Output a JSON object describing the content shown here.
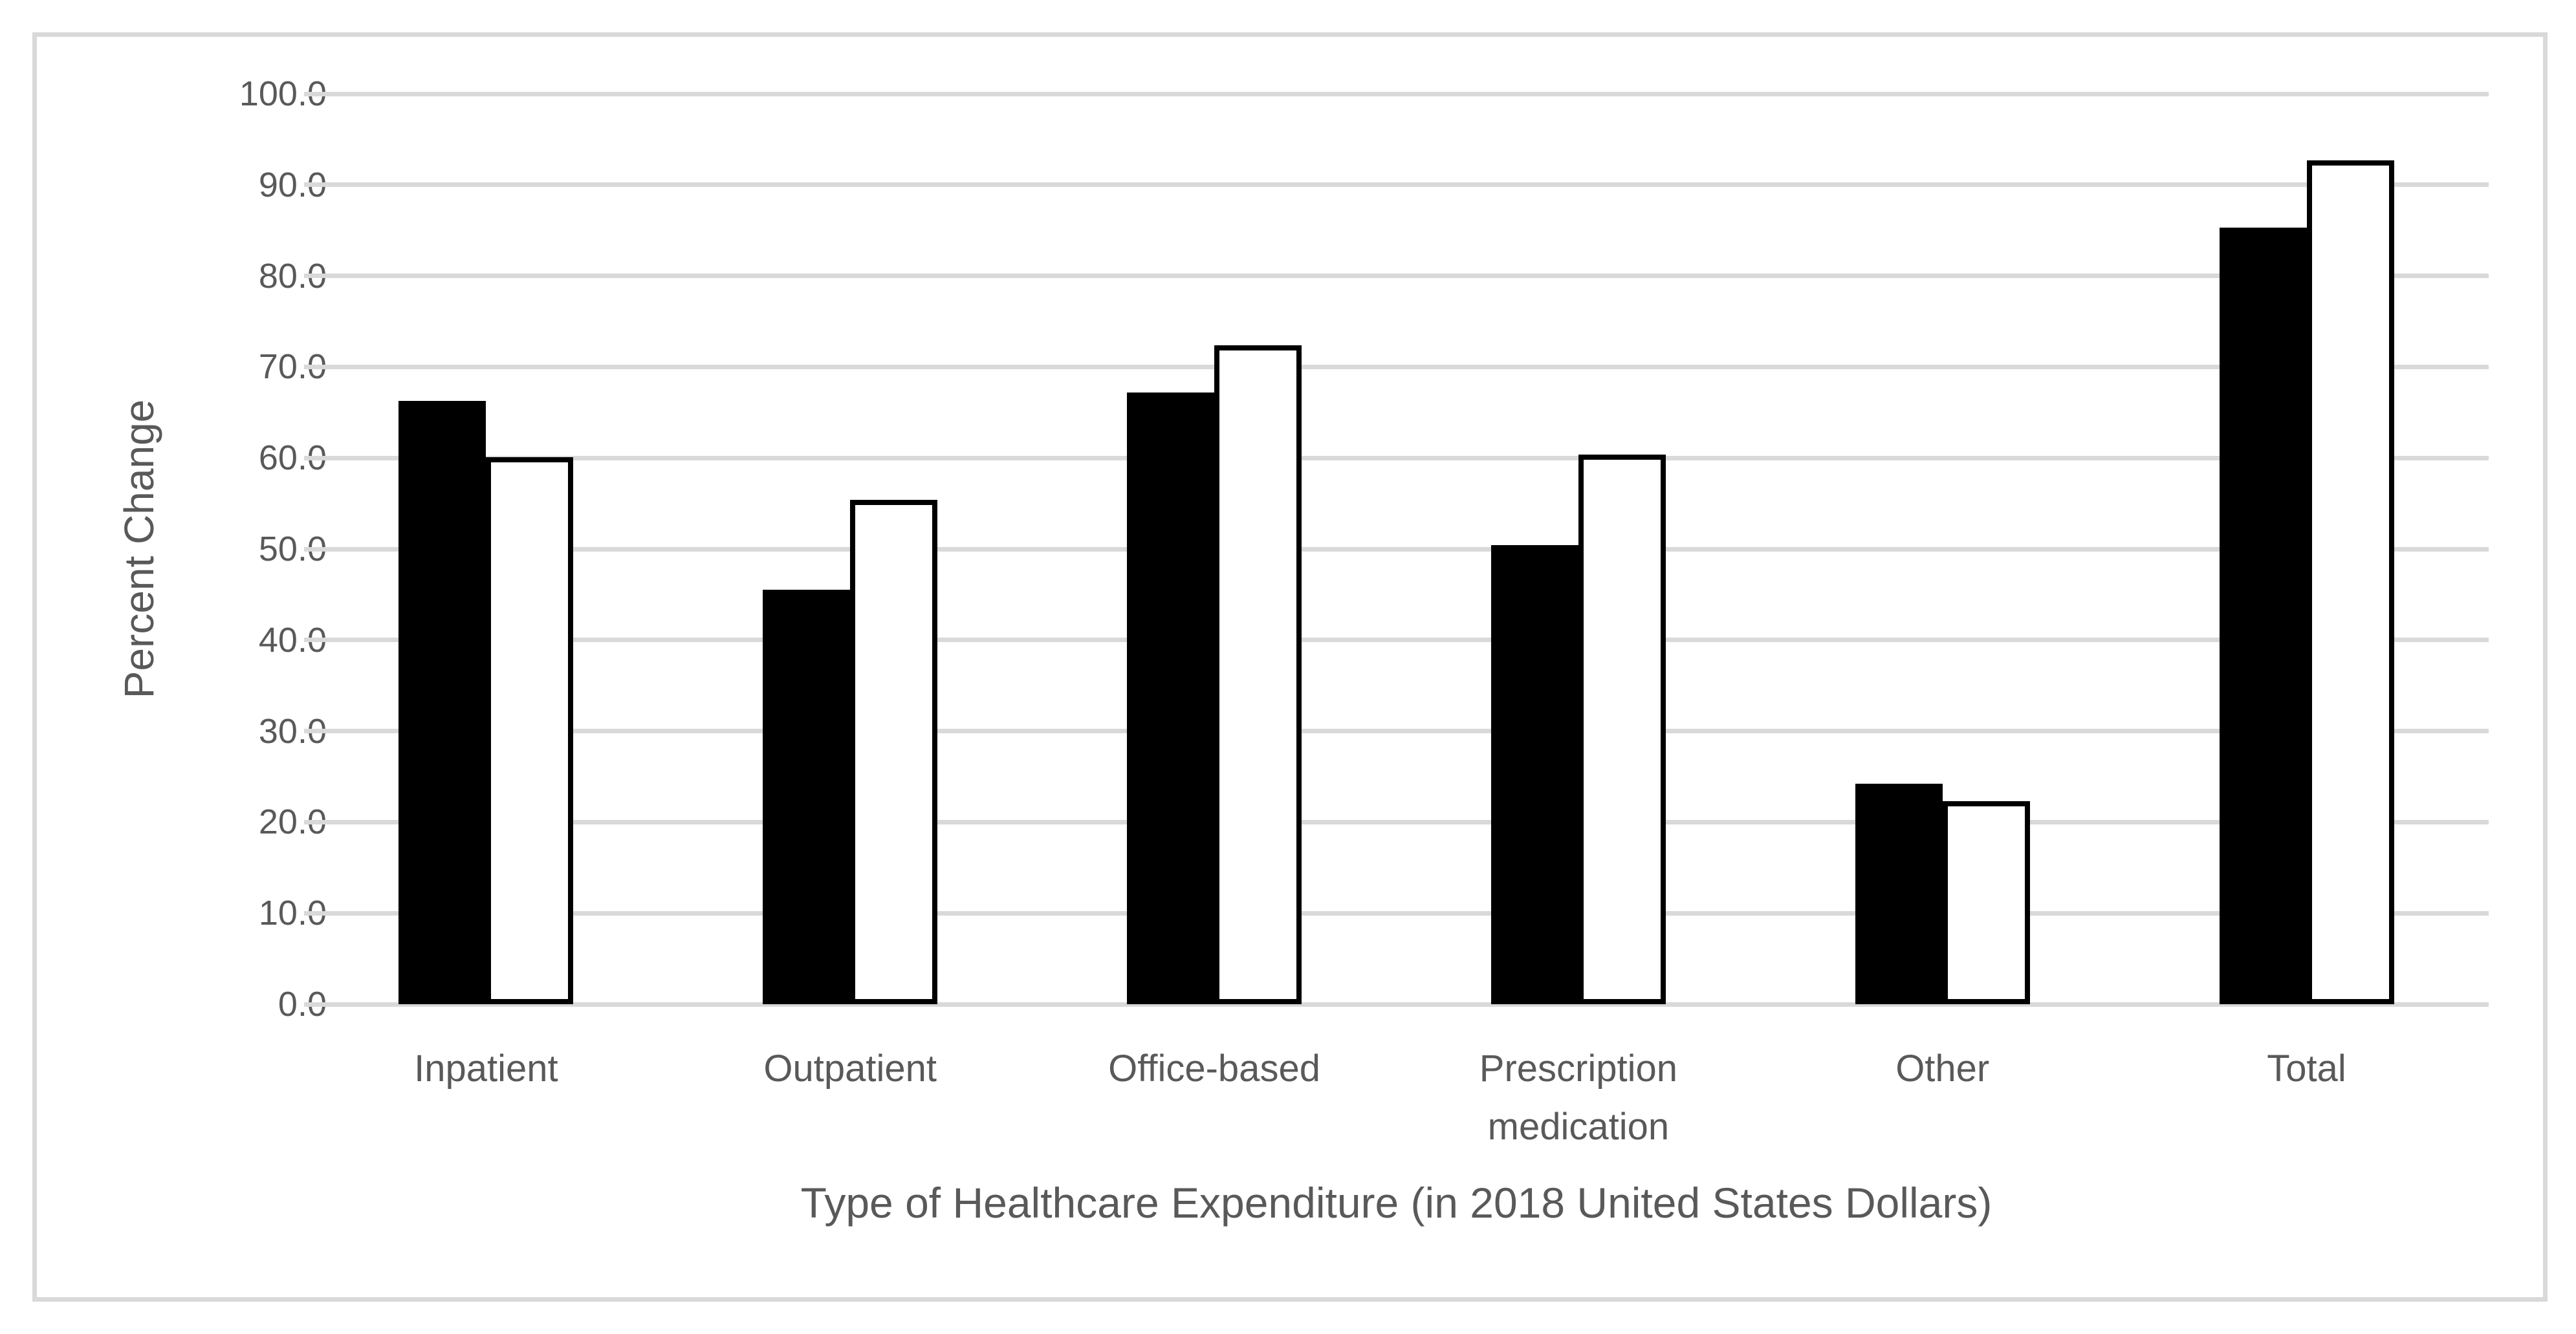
{
  "chart_data": {
    "type": "bar",
    "title": "",
    "categories": [
      "Inpatient",
      "Outpatient",
      "Office-based",
      "Prescription medication",
      "Other",
      "Total"
    ],
    "series": [
      {
        "name": "black-bars",
        "appearance": "solid black fill",
        "color": "#000000",
        "values": [
          66.3,
          45.5,
          67.2,
          50.4,
          24.2,
          85.3
        ]
      },
      {
        "name": "white-bars",
        "appearance": "white fill with black outline",
        "color": "#FFFFFF",
        "values": [
          60.1,
          55.4,
          72.4,
          60.4,
          22.3,
          92.7
        ]
      }
    ],
    "xlabel": "Type of Healthcare Expenditure (in 2018 United States Dollars)",
    "ylabel": "Percent Change",
    "ylim": [
      0,
      100
    ],
    "ytick_step": 10,
    "ytick_labels": [
      "0.0",
      "10.0",
      "20.0",
      "30.0",
      "40.0",
      "50.0",
      "60.0",
      "70.0",
      "80.0",
      "90.0",
      "100.0"
    ],
    "grid": true,
    "legend": "none"
  },
  "colors": {
    "text": "#595959",
    "gridline": "#D9D9D9",
    "frame_border": "#D9D9D9",
    "background": "#FFFFFF",
    "bar_black": "#000000",
    "bar_white_fill": "#FFFFFF",
    "bar_white_border": "#000000"
  }
}
